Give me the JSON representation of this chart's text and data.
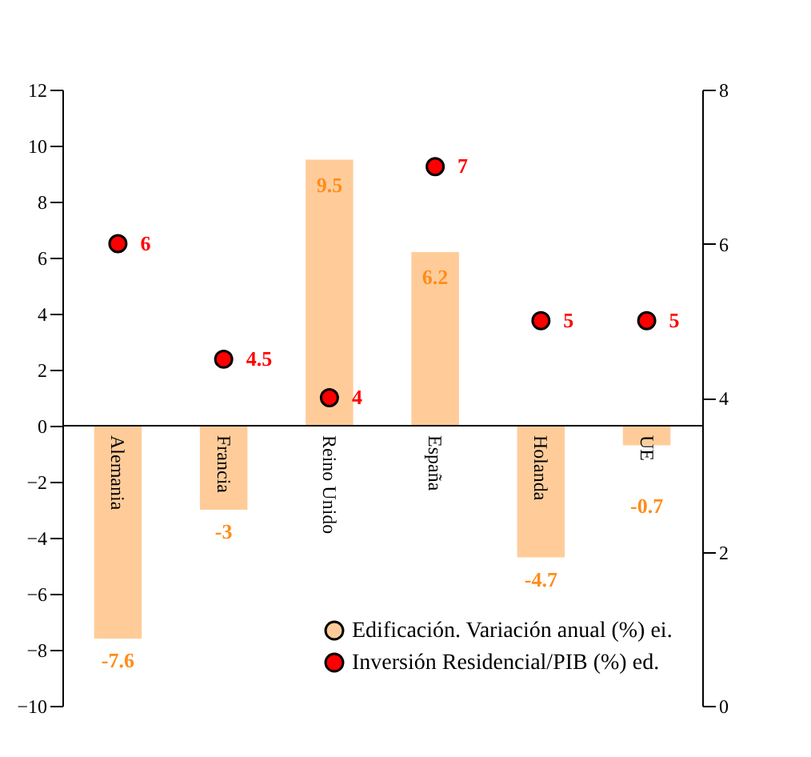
{
  "chart_data": {
    "type": "bar",
    "categories": [
      "Alemania",
      "Francia",
      "Reino Unido",
      "España",
      "Holanda",
      "UE"
    ],
    "series": [
      {
        "name": "Edificación. Variación anual (%) ei.",
        "color": "#ffcc99",
        "values": [
          -7.6,
          -3,
          9.5,
          6.2,
          -4.7,
          -0.7
        ]
      },
      {
        "name": "Inversión Residencial/PIB (%) ed.",
        "type": "scatter",
        "axis": "y2",
        "color": "#ff0000",
        "values": [
          6,
          4.5,
          4,
          7,
          5,
          5
        ]
      }
    ],
    "ylim": [
      -10,
      12
    ],
    "yticks": [
      -10,
      -8,
      -6,
      -4,
      -2,
      0,
      2,
      4,
      6,
      8,
      10,
      12
    ],
    "y2lim": [
      0,
      8
    ],
    "y2ticks": [
      0,
      2,
      4,
      6,
      8
    ],
    "data_labels": true,
    "marker": "circle",
    "grid": false,
    "legend": "bottom right"
  }
}
